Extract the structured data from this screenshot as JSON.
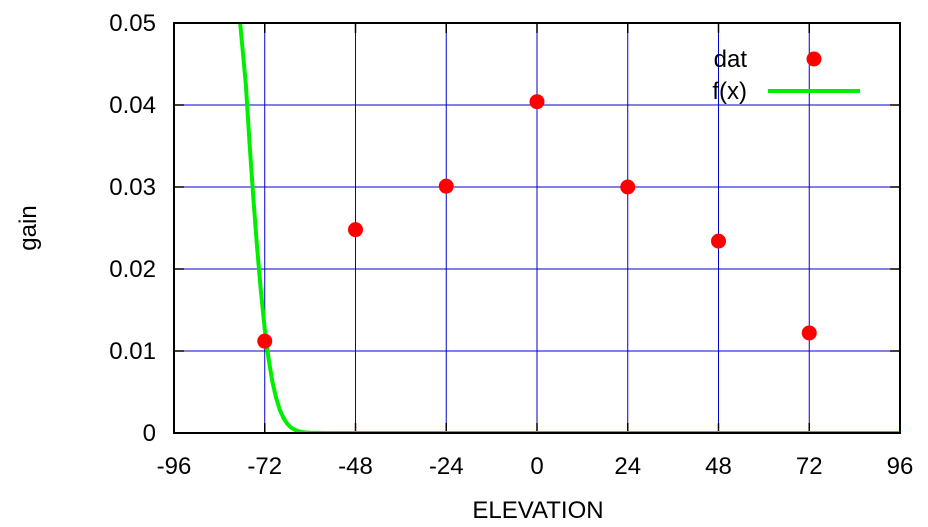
{
  "chart_data": {
    "type": "scatter",
    "xlabel": "ELEVATION",
    "ylabel": "gain",
    "xlim": [
      -96,
      96
    ],
    "ylim": [
      0,
      0.05
    ],
    "xticks": [
      -96,
      -72,
      -48,
      -24,
      0,
      24,
      48,
      72,
      96
    ],
    "yticks": [
      0,
      0.01,
      0.02,
      0.03,
      0.04,
      0.05
    ],
    "grid": true,
    "legend_position": "top-right",
    "series": [
      {
        "name": "dat",
        "kind": "points",
        "color": "#ff0000",
        "x": [
          -72,
          -48,
          -24,
          0,
          24,
          48,
          72
        ],
        "y": [
          0.0112,
          0.0248,
          0.0301,
          0.0404,
          0.03,
          0.0234,
          0.0122
        ]
      },
      {
        "name": "f(x)",
        "kind": "line",
        "color": "#00ee00",
        "x": [
          -78.5,
          -77,
          -76,
          -75,
          -74,
          -73,
          -72,
          -71,
          -70,
          -69,
          -68,
          -67,
          -66,
          -65,
          -64,
          -63,
          -62,
          -61,
          -60,
          -58,
          -55,
          -50,
          -40,
          -20,
          0,
          20,
          40,
          60,
          80,
          96
        ],
        "y": [
          0.05,
          0.0425,
          0.0352,
          0.0285,
          0.0225,
          0.0172,
          0.0127,
          0.0091,
          0.0063,
          0.0043,
          0.0028,
          0.0018,
          0.0011,
          0.00065,
          0.00038,
          0.00021,
          0.00011,
          6e-05,
          3e-05,
          1e-05,
          0,
          0,
          0,
          0,
          0,
          0,
          0,
          0,
          0,
          0
        ]
      }
    ]
  },
  "colors": {
    "grid": "#0000cc",
    "frame": "#000000"
  }
}
